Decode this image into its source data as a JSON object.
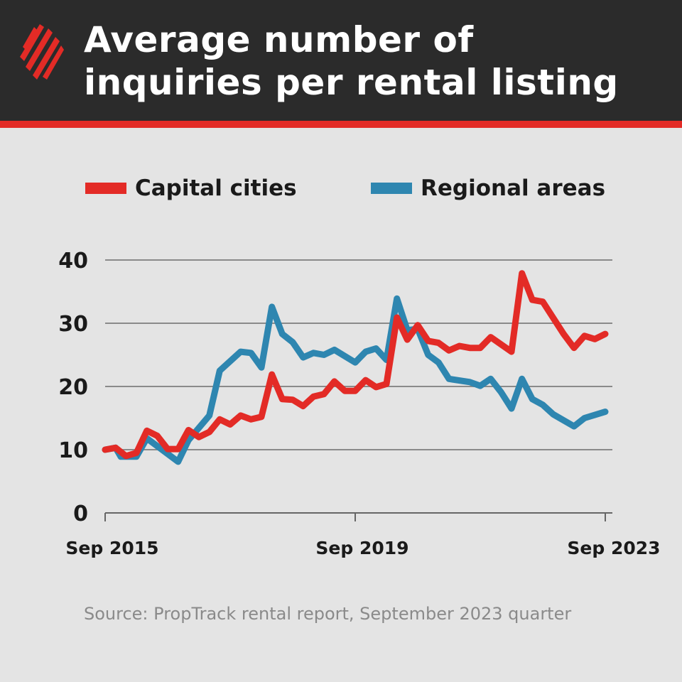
{
  "header": {
    "title_line1": "Average number of",
    "title_line2": "inquiries per rental listing",
    "logo_colors": "#e32b26",
    "background": "#2b2b2b",
    "accent": "#e32b26"
  },
  "source": "Source: PropTrack rental report, September 2023 quarter",
  "chart_data": {
    "type": "line",
    "title": "Average number of inquiries per rental listing",
    "xlabel": "",
    "ylabel": "",
    "ylim": [
      0,
      40
    ],
    "xlim": [
      "2015-09",
      "2023-09"
    ],
    "yticks": [
      "0",
      "10",
      "20",
      "30",
      "40"
    ],
    "xticks": [
      {
        "label": "Sep 2015",
        "x": "2015-09"
      },
      {
        "label": "Sep 2019",
        "x": "2019-09"
      },
      {
        "label": "Sep 2023",
        "x": "2023-09"
      }
    ],
    "grid": "horizontal",
    "legend_placement": "top",
    "series": [
      {
        "name": "Capital cities",
        "color": "#e32b26",
        "points": [
          [
            "2015-09",
            10
          ],
          [
            "2015-11",
            10.3
          ],
          [
            "2016-01",
            9
          ],
          [
            "2016-03",
            9.5
          ],
          [
            "2016-05",
            13
          ],
          [
            "2016-07",
            12.2
          ],
          [
            "2016-09",
            10.1
          ],
          [
            "2016-11",
            10.1
          ],
          [
            "2017-01",
            13.1
          ],
          [
            "2017-03",
            12
          ],
          [
            "2017-05",
            12.8
          ],
          [
            "2017-07",
            14.8
          ],
          [
            "2017-09",
            14
          ],
          [
            "2017-11",
            15.4
          ],
          [
            "2018-01",
            14.8
          ],
          [
            "2018-03",
            15.2
          ],
          [
            "2018-05",
            21.9
          ],
          [
            "2018-07",
            18
          ],
          [
            "2018-09",
            17.9
          ],
          [
            "2018-11",
            16.9
          ],
          [
            "2019-01",
            18.4
          ],
          [
            "2019-03",
            18.8
          ],
          [
            "2019-05",
            20.8
          ],
          [
            "2019-07",
            19.3
          ],
          [
            "2019-09",
            19.3
          ],
          [
            "2019-11",
            21
          ],
          [
            "2020-01",
            19.9
          ],
          [
            "2020-03",
            20.4
          ],
          [
            "2020-05",
            30.9
          ],
          [
            "2020-07",
            27.4
          ],
          [
            "2020-09",
            29.7
          ],
          [
            "2020-11",
            27.2
          ],
          [
            "2021-01",
            26.9
          ],
          [
            "2021-03",
            25.7
          ],
          [
            "2021-05",
            26.4
          ],
          [
            "2021-07",
            26.1
          ],
          [
            "2021-09",
            26.1
          ],
          [
            "2021-11",
            27.8
          ],
          [
            "2022-03",
            25.5
          ],
          [
            "2022-05",
            37.9
          ],
          [
            "2022-07",
            33.7
          ],
          [
            "2022-09",
            33.4
          ],
          [
            "2023-01",
            28.3
          ],
          [
            "2023-03",
            26.1
          ],
          [
            "2023-05",
            28
          ],
          [
            "2023-07",
            27.5
          ],
          [
            "2023-09",
            28.3
          ]
        ]
      },
      {
        "name": "Regional areas",
        "color": "#2e86b0",
        "points": [
          [
            "2015-09",
            10
          ],
          [
            "2015-11",
            10.3
          ],
          [
            "2015-12",
            8.9
          ],
          [
            "2016-03",
            8.9
          ],
          [
            "2016-05",
            11.8
          ],
          [
            "2016-11",
            8.1
          ],
          [
            "2017-01",
            11.5
          ],
          [
            "2017-05",
            15.4
          ],
          [
            "2017-07",
            22.5
          ],
          [
            "2017-11",
            25.5
          ],
          [
            "2018-01",
            25.3
          ],
          [
            "2018-03",
            23
          ],
          [
            "2018-05",
            32.6
          ],
          [
            "2018-07",
            28.3
          ],
          [
            "2018-09",
            27
          ],
          [
            "2018-11",
            24.6
          ],
          [
            "2019-01",
            25.3
          ],
          [
            "2019-03",
            25
          ],
          [
            "2019-05",
            25.8
          ],
          [
            "2019-09",
            23.8
          ],
          [
            "2019-11",
            25.5
          ],
          [
            "2020-01",
            26
          ],
          [
            "2020-03",
            24.2
          ],
          [
            "2020-05",
            33.9
          ],
          [
            "2020-07",
            28.9
          ],
          [
            "2020-09",
            29.1
          ],
          [
            "2020-11",
            25
          ],
          [
            "2021-01",
            23.8
          ],
          [
            "2021-03",
            21.2
          ],
          [
            "2021-07",
            20.7
          ],
          [
            "2021-09",
            20.1
          ],
          [
            "2021-11",
            21.2
          ],
          [
            "2022-01",
            19.1
          ],
          [
            "2022-03",
            16.5
          ],
          [
            "2022-05",
            21.2
          ],
          [
            "2022-07",
            18
          ],
          [
            "2022-09",
            17.1
          ],
          [
            "2022-11",
            15.6
          ],
          [
            "2023-03",
            13.7
          ],
          [
            "2023-05",
            15
          ],
          [
            "2023-09",
            16
          ]
        ]
      }
    ]
  }
}
